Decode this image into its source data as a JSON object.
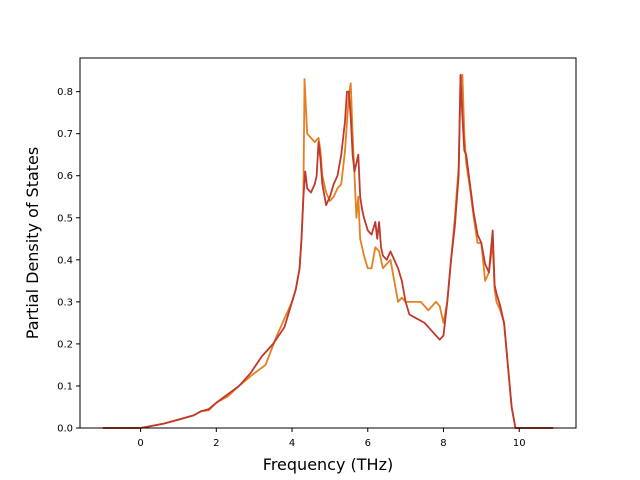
{
  "chart_data": {
    "type": "line",
    "title": "",
    "xlabel": "Frequency (THz)",
    "ylabel": "Partial Density of States",
    "xlim": [
      -1.6,
      11.5
    ],
    "ylim": [
      0.0,
      0.88
    ],
    "xticks": [
      0,
      2,
      4,
      6,
      8,
      10
    ],
    "yticks": [
      0.0,
      0.1,
      0.2,
      0.3,
      0.4,
      0.5,
      0.6,
      0.7,
      0.8
    ],
    "xtick_labels": [
      "0",
      "2",
      "4",
      "6",
      "8",
      "10"
    ],
    "ytick_labels": [
      "0.0",
      "0.1",
      "0.2",
      "0.3",
      "0.4",
      "0.5",
      "0.6",
      "0.7",
      "0.8"
    ],
    "grid": false,
    "legend": "none",
    "series": [
      {
        "color": "#e67e22",
        "x": [
          -1.0,
          0.0,
          0.3,
          0.6,
          1.0,
          1.4,
          1.6,
          1.8,
          2.0,
          2.3,
          2.6,
          3.0,
          3.3,
          3.6,
          3.8,
          4.0,
          4.1,
          4.2,
          4.25,
          4.3,
          4.33,
          4.4,
          4.5,
          4.6,
          4.7,
          4.75,
          4.8,
          4.9,
          5.0,
          5.1,
          5.2,
          5.3,
          5.4,
          5.5,
          5.55,
          5.6,
          5.7,
          5.75,
          5.8,
          5.85,
          5.9,
          6.0,
          6.1,
          6.2,
          6.3,
          6.4,
          6.5,
          6.6,
          6.7,
          6.8,
          6.9,
          7.0,
          7.1,
          7.2,
          7.4,
          7.6,
          7.8,
          7.9,
          8.0,
          8.1,
          8.2,
          8.3,
          8.4,
          8.45,
          8.5,
          8.55,
          8.6,
          8.7,
          8.8,
          8.9,
          9.0,
          9.1,
          9.2,
          9.3,
          9.35,
          9.4,
          9.5,
          9.6,
          9.7,
          9.8,
          9.9,
          10.0,
          10.9
        ],
        "y": [
          0.0,
          0.0,
          0.005,
          0.01,
          0.02,
          0.03,
          0.04,
          0.042,
          0.06,
          0.075,
          0.1,
          0.13,
          0.15,
          0.22,
          0.26,
          0.3,
          0.33,
          0.38,
          0.45,
          0.55,
          0.83,
          0.7,
          0.69,
          0.68,
          0.69,
          0.66,
          0.6,
          0.56,
          0.54,
          0.55,
          0.57,
          0.58,
          0.66,
          0.79,
          0.82,
          0.7,
          0.5,
          0.55,
          0.45,
          0.43,
          0.41,
          0.38,
          0.38,
          0.43,
          0.42,
          0.38,
          0.39,
          0.4,
          0.35,
          0.3,
          0.31,
          0.3,
          0.3,
          0.3,
          0.3,
          0.28,
          0.3,
          0.29,
          0.25,
          0.3,
          0.4,
          0.5,
          0.62,
          0.82,
          0.84,
          0.7,
          0.63,
          0.57,
          0.5,
          0.44,
          0.44,
          0.35,
          0.37,
          0.44,
          0.33,
          0.3,
          0.28,
          0.25,
          0.15,
          0.05,
          0.0,
          0.0,
          0.0
        ]
      },
      {
        "color": "#c0392b",
        "x": [
          -1.0,
          0.0,
          0.3,
          0.6,
          1.0,
          1.4,
          1.6,
          1.8,
          2.0,
          2.3,
          2.6,
          2.9,
          3.2,
          3.5,
          3.8,
          4.0,
          4.1,
          4.2,
          4.25,
          4.3,
          4.35,
          4.4,
          4.5,
          4.6,
          4.65,
          4.7,
          4.75,
          4.8,
          4.9,
          5.0,
          5.1,
          5.2,
          5.3,
          5.4,
          5.45,
          5.5,
          5.55,
          5.6,
          5.65,
          5.7,
          5.75,
          5.8,
          5.85,
          5.9,
          6.0,
          6.1,
          6.2,
          6.25,
          6.3,
          6.35,
          6.4,
          6.5,
          6.6,
          6.7,
          6.8,
          6.9,
          7.0,
          7.1,
          7.3,
          7.5,
          7.7,
          7.8,
          7.9,
          8.0,
          8.1,
          8.2,
          8.3,
          8.4,
          8.45,
          8.5,
          8.55,
          8.6,
          8.7,
          8.8,
          8.9,
          9.0,
          9.1,
          9.2,
          9.3,
          9.35,
          9.4,
          9.5,
          9.6,
          9.7,
          9.8,
          9.9,
          10.0,
          10.9
        ],
        "y": [
          0.0,
          0.0,
          0.005,
          0.01,
          0.02,
          0.03,
          0.04,
          0.045,
          0.06,
          0.08,
          0.1,
          0.13,
          0.17,
          0.2,
          0.24,
          0.3,
          0.33,
          0.38,
          0.45,
          0.55,
          0.61,
          0.57,
          0.56,
          0.58,
          0.6,
          0.68,
          0.64,
          0.58,
          0.53,
          0.55,
          0.58,
          0.6,
          0.65,
          0.73,
          0.8,
          0.8,
          0.74,
          0.65,
          0.61,
          0.63,
          0.65,
          0.55,
          0.52,
          0.5,
          0.47,
          0.46,
          0.49,
          0.45,
          0.49,
          0.43,
          0.41,
          0.4,
          0.42,
          0.4,
          0.38,
          0.35,
          0.3,
          0.27,
          0.26,
          0.25,
          0.23,
          0.22,
          0.21,
          0.22,
          0.3,
          0.4,
          0.48,
          0.6,
          0.84,
          0.74,
          0.66,
          0.65,
          0.58,
          0.51,
          0.46,
          0.44,
          0.39,
          0.37,
          0.47,
          0.34,
          0.32,
          0.29,
          0.25,
          0.15,
          0.05,
          0.0,
          0.0,
          0.0
        ]
      }
    ]
  }
}
